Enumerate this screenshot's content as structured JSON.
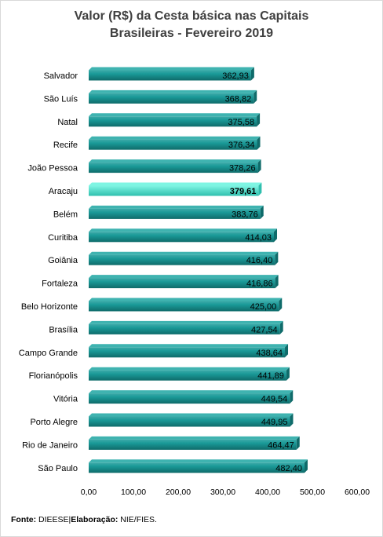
{
  "chart_data": {
    "type": "bar",
    "orientation": "horizontal",
    "title": [
      "Valor (R$) da Cesta básica nas Capitais",
      "Brasileiras - Fevereiro 2019"
    ],
    "categories": [
      "Salvador",
      "São Luís",
      "Natal",
      "Recife",
      "João Pessoa",
      "Aracaju",
      "Belém",
      "Curitiba",
      "Goiânia",
      "Fortaleza",
      "Belo Horizonte",
      "Brasília",
      "Campo Grande",
      "Florianópolis",
      "Vitória",
      "Porto Alegre",
      "Rio de Janeiro",
      "São Paulo"
    ],
    "values": [
      362.93,
      368.82,
      375.58,
      376.34,
      378.26,
      379.61,
      383.76,
      414.03,
      416.4,
      416.86,
      425.0,
      427.54,
      438.64,
      441.89,
      449.54,
      449.95,
      464.47,
      482.4
    ],
    "value_labels": [
      "362,93",
      "368,82",
      "375,58",
      "376,34",
      "378,26",
      "379,61",
      "383,76",
      "414,03",
      "416,40",
      "416,86",
      "425,00",
      "427,54",
      "438,64",
      "441,89",
      "449,54",
      "449,95",
      "464,47",
      "482,40"
    ],
    "highlight": "Aracaju",
    "xlim": [
      0,
      600
    ],
    "xticks": [
      0,
      100,
      200,
      300,
      400,
      500,
      600
    ],
    "xtick_labels": [
      "0,00",
      "100,00",
      "200,00",
      "300,00",
      "400,00",
      "500,00",
      "600,00"
    ],
    "grid": false,
    "legend": "none",
    "colors": {
      "bar": "#1a9a98",
      "bar_dark": "#0f6b6a",
      "highlight": "#7ff5e3",
      "highlight_dark": "#2fbfae"
    }
  },
  "footer": {
    "source_label": "Fonte:",
    "source_value": "DIEESE",
    "separator": "|",
    "credit_label": "Elaboração:",
    "credit_value": "NIE/FIES."
  }
}
